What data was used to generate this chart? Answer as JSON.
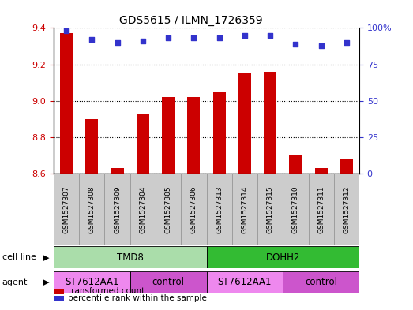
{
  "title": "GDS5615 / ILMN_1726359",
  "samples": [
    "GSM1527307",
    "GSM1527308",
    "GSM1527309",
    "GSM1527304",
    "GSM1527305",
    "GSM1527306",
    "GSM1527313",
    "GSM1527314",
    "GSM1527315",
    "GSM1527310",
    "GSM1527311",
    "GSM1527312"
  ],
  "transformed_counts": [
    9.37,
    8.9,
    8.63,
    8.93,
    9.02,
    9.02,
    9.05,
    9.15,
    9.16,
    8.7,
    8.63,
    8.68
  ],
  "percentile_ranks": [
    98,
    92,
    90,
    91,
    93,
    93,
    93,
    95,
    95,
    89,
    88,
    90
  ],
  "ylim": [
    8.6,
    9.4
  ],
  "ylim_right": [
    0,
    100
  ],
  "yticks_left": [
    8.6,
    8.8,
    9.0,
    9.2,
    9.4
  ],
  "yticks_right": [
    0,
    25,
    50,
    75,
    100
  ],
  "bar_color": "#cc0000",
  "dot_color": "#3333cc",
  "bar_width": 0.5,
  "cell_line_groups": [
    {
      "label": "TMD8",
      "start": 0,
      "end": 6,
      "color": "#aaddaa"
    },
    {
      "label": "DOHH2",
      "start": 6,
      "end": 12,
      "color": "#33bb33"
    }
  ],
  "agent_groups": [
    {
      "label": "ST7612AA1",
      "start": 0,
      "end": 3,
      "color": "#ee88ee"
    },
    {
      "label": "control",
      "start": 3,
      "end": 6,
      "color": "#cc55cc"
    },
    {
      "label": "ST7612AA1",
      "start": 6,
      "end": 9,
      "color": "#ee88ee"
    },
    {
      "label": "control",
      "start": 9,
      "end": 12,
      "color": "#cc55cc"
    }
  ],
  "legend_items": [
    {
      "label": "transformed count",
      "color": "#cc0000"
    },
    {
      "label": "percentile rank within the sample",
      "color": "#3333cc"
    }
  ],
  "tick_color_left": "#cc0000",
  "tick_color_right": "#3333cc",
  "sample_box_color": "#cccccc",
  "sample_box_edge": "#999999"
}
